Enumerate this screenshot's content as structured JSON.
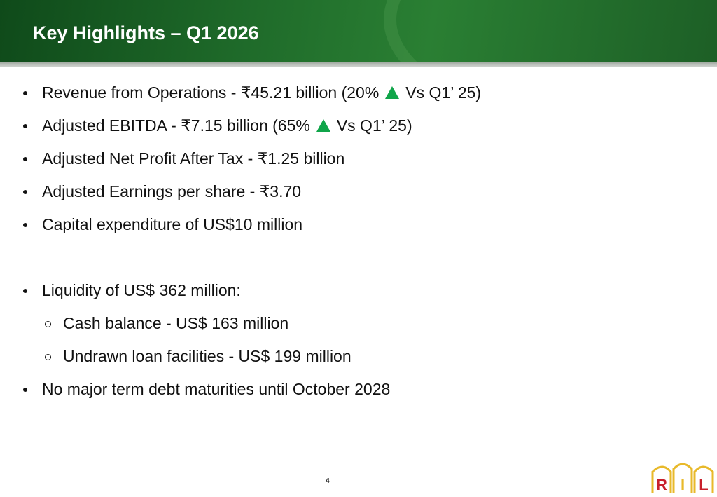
{
  "header": {
    "title": "Key Highlights – Q1 2026"
  },
  "list_1": [
    {
      "text": "Revenue from Operations - ₹45.21 billion (20%",
      "after_arrow": "Vs Q1’ 25)"
    },
    {
      "text": "Adjusted EBITDA - ₹7.15 billion (65%",
      "after_arrow": "Vs Q1’ 25)"
    },
    {
      "text": "Adjusted Net Profit After Tax - ₹1.25 billion"
    },
    {
      "text": "Adjusted Earnings per share - ₹3.70"
    },
    {
      "text": "Capital expenditure of US$10 million"
    }
  ],
  "list_2": [
    {
      "text": "Liquidity of US$ 362 million:",
      "sub_items": [
        "Cash balance - US$ 163 million",
        "Undrawn loan facilities - US$ 199 million"
      ]
    },
    {
      "text": "No major term debt maturities until October 2028"
    }
  ],
  "footer": {
    "page_number": "4",
    "logo_letters": [
      "R",
      "I",
      "L"
    ]
  }
}
